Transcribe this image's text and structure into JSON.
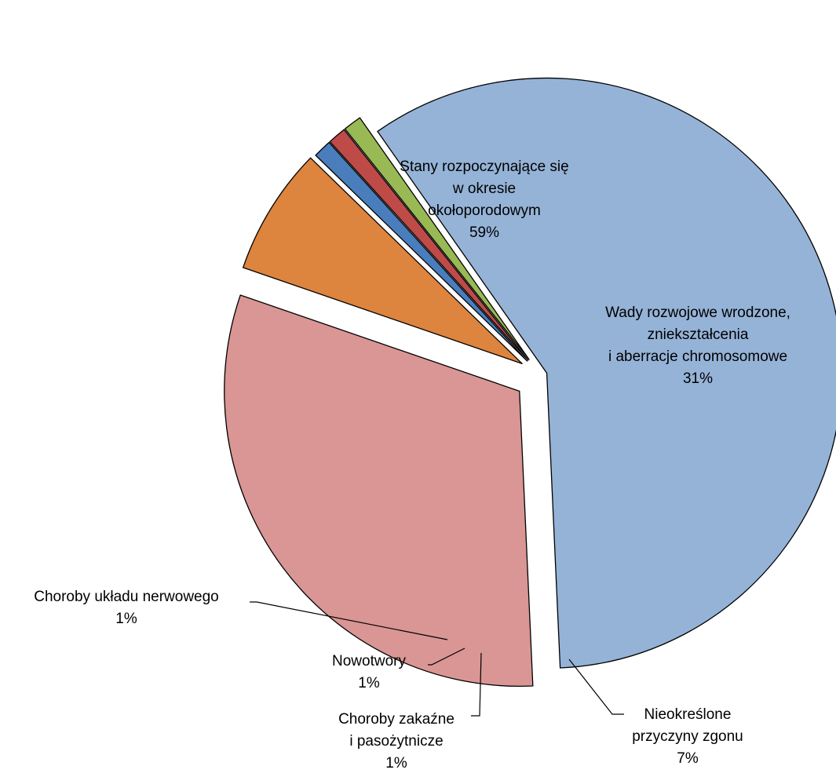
{
  "chart_data": {
    "type": "pie",
    "title": "",
    "slices": [
      {
        "name_lines": [
          "Stany rozpoczynające się",
          "w okresie",
          "okołoporodowym"
        ],
        "value_label": "59%",
        "value": 59,
        "color": "#95B3D7"
      },
      {
        "name_lines": [
          "Wady rozwojowe wrodzone,",
          "zniekształcenia",
          "i aberracje chromosomowe"
        ],
        "value_label": "31%",
        "value": 31,
        "color": "#D99694"
      },
      {
        "name_lines": [
          "Nieokreślone",
          "przyczyny zgonu"
        ],
        "value_label": "7%",
        "value": 7,
        "color": "#DD843E"
      },
      {
        "name_lines": [
          "Choroby zakaźne",
          "i pasożytnicze"
        ],
        "value_label": "1%",
        "value": 1,
        "color": "#4A7DBB"
      },
      {
        "name_lines": [
          "Nowotwory"
        ],
        "value_label": "1%",
        "value": 1,
        "color": "#BE4B48"
      },
      {
        "name_lines": [
          "Choroby układu nerwowego"
        ],
        "value_label": "1%",
        "value": 1,
        "color": "#98B954"
      }
    ]
  }
}
